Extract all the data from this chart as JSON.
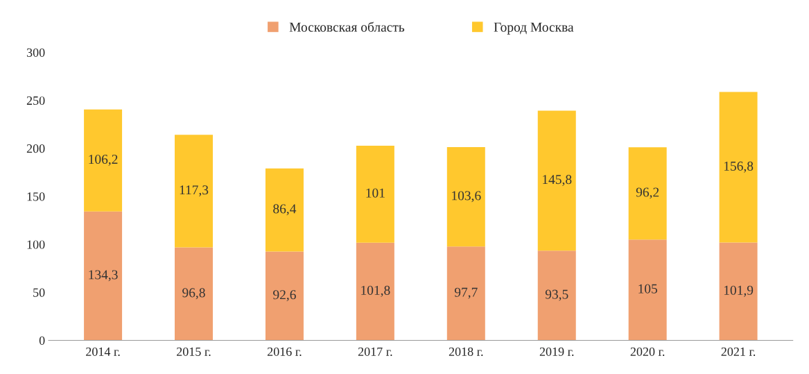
{
  "chart_data": {
    "type": "bar",
    "stacked": true,
    "categories": [
      "2014 г.",
      "2015 г.",
      "2016 г.",
      "2017 г.",
      "2018 г.",
      "2019 г.",
      "2020 г.",
      "2021 г."
    ],
    "series": [
      {
        "name": "Московская область",
        "color": "#f0a070",
        "values": [
          134.3,
          96.8,
          92.6,
          101.8,
          97.7,
          93.5,
          105,
          101.9
        ],
        "value_labels": [
          "134,3",
          "96,8",
          "92,6",
          "101,8",
          "97,7",
          "93,5",
          "105",
          "101,9"
        ]
      },
      {
        "name": "Город Москва",
        "color": "#ffc82e",
        "values": [
          106.2,
          117.3,
          86.4,
          101,
          103.6,
          145.8,
          96.2,
          156.8
        ],
        "value_labels": [
          "106,2",
          "117,3",
          "86,4",
          "101",
          "103,6",
          "145,8",
          "96,2",
          "156,8"
        ]
      }
    ],
    "ylim": [
      0,
      300
    ],
    "yticks": [
      0,
      50,
      100,
      150,
      200,
      250,
      300
    ],
    "grid": false,
    "legend": "top"
  }
}
